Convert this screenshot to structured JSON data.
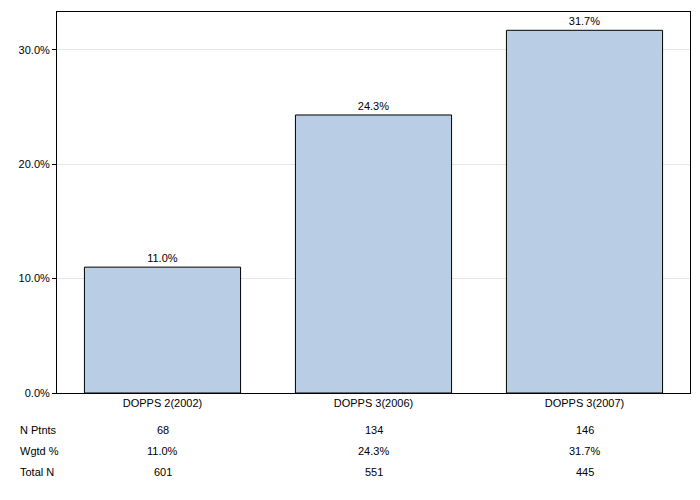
{
  "chart_data": {
    "type": "bar",
    "categories": [
      "DOPPS 2(2002)",
      "DOPPS 3(2006)",
      "DOPPS 3(2007)"
    ],
    "values": [
      11.0,
      24.3,
      31.7
    ],
    "value_labels": [
      "11.0%",
      "24.3%",
      "31.7%"
    ],
    "data_labels": true,
    "color": "#b9cde5",
    "ylim": [
      0,
      33.3
    ],
    "yticks": [
      {
        "value": 0,
        "label": "0.0%"
      },
      {
        "value": 10,
        "label": "10.0%"
      },
      {
        "value": 20,
        "label": "20.0%"
      },
      {
        "value": 30,
        "label": "30.0%"
      }
    ],
    "grid": true
  },
  "table": {
    "rows": [
      {
        "label": "N Ptnts",
        "cells": [
          "68",
          "134",
          "146"
        ]
      },
      {
        "label": "Wgtd %",
        "cells": [
          "11.0%",
          "24.3%",
          "31.7%"
        ]
      },
      {
        "label": "Total N",
        "cells": [
          "601",
          "551",
          "445"
        ]
      }
    ]
  }
}
